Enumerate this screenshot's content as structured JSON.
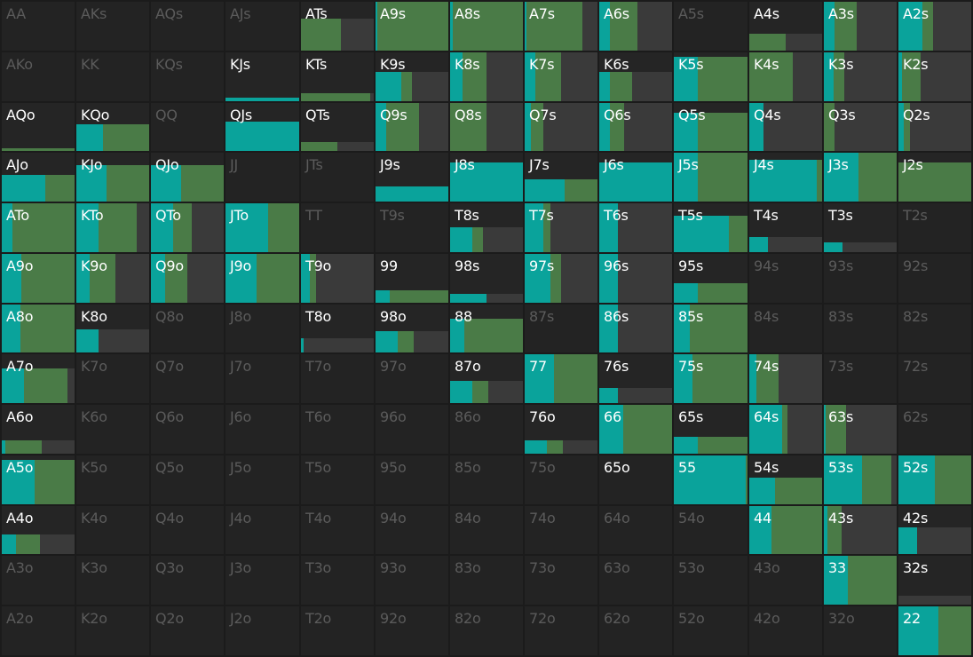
{
  "colors": {
    "background": "#1b1b1b",
    "cell": "#252525",
    "teal": "#0aa39b",
    "green": "#4a7b47",
    "fold": "#3a3a3a",
    "label_active": "#ffffff",
    "label_inactive": "#5b5b5b"
  },
  "rows": [
    [
      {
        "hand": "AA",
        "active": false
      },
      {
        "hand": "AKs",
        "active": false
      },
      {
        "hand": "AQs",
        "active": false
      },
      {
        "hand": "AJs",
        "active": false
      },
      {
        "hand": "ATs",
        "active": true,
        "freq": 0.65,
        "teal": 0.0,
        "green": 0.55
      },
      {
        "hand": "A9s",
        "active": true,
        "freq": 1.0,
        "teal": 0.02,
        "green": 0.98
      },
      {
        "hand": "A8s",
        "active": true,
        "freq": 1.0,
        "teal": 0.04,
        "green": 0.96
      },
      {
        "hand": "A7s",
        "active": true,
        "freq": 1.0,
        "teal": 0.02,
        "green": 0.77
      },
      {
        "hand": "A6s",
        "active": true,
        "freq": 1.0,
        "teal": 0.15,
        "green": 0.38
      },
      {
        "hand": "A5s",
        "active": false
      },
      {
        "hand": "A4s",
        "active": true,
        "freq": 0.35,
        "teal": 0.0,
        "green": 0.5
      },
      {
        "hand": "A3s",
        "active": true,
        "freq": 1.0,
        "teal": 0.15,
        "green": 0.3
      },
      {
        "hand": "A2s",
        "active": true,
        "freq": 1.0,
        "teal": 0.33,
        "green": 0.15
      }
    ],
    [
      {
        "hand": "AKo",
        "active": false
      },
      {
        "hand": "KK",
        "active": false
      },
      {
        "hand": "KQs",
        "active": false
      },
      {
        "hand": "KJs",
        "active": true,
        "freq": 0.07,
        "teal": 1.0,
        "green": 0.0
      },
      {
        "hand": "KTs",
        "active": true,
        "freq": 0.16,
        "teal": 0.0,
        "green": 0.95
      },
      {
        "hand": "K9s",
        "active": true,
        "freq": 0.6,
        "teal": 0.35,
        "green": 0.15
      },
      {
        "hand": "K8s",
        "active": true,
        "freq": 1.0,
        "teal": 0.17,
        "green": 0.33
      },
      {
        "hand": "K7s",
        "active": true,
        "freq": 1.0,
        "teal": 0.15,
        "green": 0.35
      },
      {
        "hand": "K6s",
        "active": true,
        "freq": 0.6,
        "teal": 0.15,
        "green": 0.3
      },
      {
        "hand": "K5s",
        "active": true,
        "freq": 0.9,
        "teal": 0.33,
        "green": 0.67
      },
      {
        "hand": "K4s",
        "active": true,
        "freq": 1.0,
        "teal": 0.0,
        "green": 0.6
      },
      {
        "hand": "K3s",
        "active": true,
        "freq": 1.0,
        "teal": 0.13,
        "green": 0.15
      },
      {
        "hand": "K2s",
        "active": true,
        "freq": 1.0,
        "teal": 0.05,
        "green": 0.25
      }
    ],
    [
      {
        "hand": "AQo",
        "active": true,
        "freq": 0.04,
        "teal": 0.0,
        "green": 1.0
      },
      {
        "hand": "KQo",
        "active": true,
        "freq": 0.55,
        "teal": 0.36,
        "green": 0.64
      },
      {
        "hand": "QQ",
        "active": false
      },
      {
        "hand": "QJs",
        "active": true,
        "freq": 0.62,
        "teal": 1.0,
        "green": 0.0
      },
      {
        "hand": "QTs",
        "active": true,
        "freq": 0.18,
        "teal": 0.0,
        "green": 0.5
      },
      {
        "hand": "Q9s",
        "active": true,
        "freq": 1.0,
        "teal": 0.15,
        "green": 0.45
      },
      {
        "hand": "Q8s",
        "active": true,
        "freq": 1.0,
        "teal": 0.0,
        "green": 0.5
      },
      {
        "hand": "Q7s",
        "active": true,
        "freq": 1.0,
        "teal": 0.08,
        "green": 0.17
      },
      {
        "hand": "Q6s",
        "active": true,
        "freq": 1.0,
        "teal": 0.15,
        "green": 0.2
      },
      {
        "hand": "Q5s",
        "active": true,
        "freq": 0.8,
        "teal": 0.33,
        "green": 0.67
      },
      {
        "hand": "Q4s",
        "active": true,
        "freq": 1.0,
        "teal": 0.2,
        "green": 0.0
      },
      {
        "hand": "Q3s",
        "active": true,
        "freq": 1.0,
        "teal": 0.0,
        "green": 0.15
      },
      {
        "hand": "Q2s",
        "active": true,
        "freq": 1.0,
        "teal": 0.07,
        "green": 0.08
      }
    ],
    [
      {
        "hand": "AJo",
        "active": true,
        "freq": 0.55,
        "teal": 0.6,
        "green": 0.4
      },
      {
        "hand": "KJo",
        "active": true,
        "freq": 0.75,
        "teal": 0.42,
        "green": 0.58
      },
      {
        "hand": "QJo",
        "active": true,
        "freq": 0.75,
        "teal": 0.42,
        "green": 0.58
      },
      {
        "hand": "JJ",
        "active": false
      },
      {
        "hand": "JTs",
        "active": false
      },
      {
        "hand": "J9s",
        "active": true,
        "freq": 0.3,
        "teal": 1.0,
        "green": 0.0
      },
      {
        "hand": "J8s",
        "active": true,
        "freq": 0.8,
        "teal": 1.0,
        "green": 0.0
      },
      {
        "hand": "J7s",
        "active": true,
        "freq": 0.45,
        "teal": 0.55,
        "green": 0.45
      },
      {
        "hand": "J6s",
        "active": true,
        "freq": 0.8,
        "teal": 1.0,
        "green": 0.0
      },
      {
        "hand": "J5s",
        "active": true,
        "freq": 1.0,
        "teal": 0.33,
        "green": 0.67
      },
      {
        "hand": "J4s",
        "active": true,
        "freq": 0.85,
        "teal": 0.93,
        "green": 0.07
      },
      {
        "hand": "J3s",
        "active": true,
        "freq": 1.0,
        "teal": 0.47,
        "green": 0.53
      },
      {
        "hand": "J2s",
        "active": true,
        "freq": 0.8,
        "teal": 0.0,
        "green": 1.0
      }
    ],
    [
      {
        "hand": "ATo",
        "active": true,
        "freq": 1.0,
        "teal": 0.15,
        "green": 0.85
      },
      {
        "hand": "KTo",
        "active": true,
        "freq": 1.0,
        "teal": 0.3,
        "green": 0.52
      },
      {
        "hand": "QTo",
        "active": true,
        "freq": 1.0,
        "teal": 0.3,
        "green": 0.25
      },
      {
        "hand": "JTo",
        "active": true,
        "freq": 1.0,
        "teal": 0.58,
        "green": 0.42
      },
      {
        "hand": "TT",
        "active": false
      },
      {
        "hand": "T9s",
        "active": false
      },
      {
        "hand": "T8s",
        "active": true,
        "freq": 0.5,
        "teal": 0.3,
        "green": 0.15
      },
      {
        "hand": "T7s",
        "active": true,
        "freq": 1.0,
        "teal": 0.25,
        "green": 0.1
      },
      {
        "hand": "T6s",
        "active": true,
        "freq": 1.0,
        "teal": 0.25,
        "green": 0.0
      },
      {
        "hand": "T5s",
        "active": true,
        "freq": 0.75,
        "teal": 0.75,
        "green": 0.25
      },
      {
        "hand": "T4s",
        "active": true,
        "freq": 0.3,
        "teal": 0.25,
        "green": 0.0
      },
      {
        "hand": "T3s",
        "active": true,
        "freq": 0.2,
        "teal": 0.25,
        "green": 0.0
      },
      {
        "hand": "T2s",
        "active": false
      }
    ],
    [
      {
        "hand": "A9o",
        "active": true,
        "freq": 1.0,
        "teal": 0.27,
        "green": 0.73
      },
      {
        "hand": "K9o",
        "active": true,
        "freq": 1.0,
        "teal": 0.18,
        "green": 0.35
      },
      {
        "hand": "Q9o",
        "active": true,
        "freq": 1.0,
        "teal": 0.2,
        "green": 0.3
      },
      {
        "hand": "J9o",
        "active": true,
        "freq": 1.0,
        "teal": 0.42,
        "green": 0.58
      },
      {
        "hand": "T9o",
        "active": true,
        "freq": 1.0,
        "teal": 0.12,
        "green": 0.08
      },
      {
        "hand": "99",
        "active": true,
        "freq": 0.25,
        "teal": 0.2,
        "green": 0.8
      },
      {
        "hand": "98s",
        "active": true,
        "freq": 0.18,
        "teal": 0.5,
        "green": 0.0
      },
      {
        "hand": "97s",
        "active": true,
        "freq": 1.0,
        "teal": 0.35,
        "green": 0.15
      },
      {
        "hand": "96s",
        "active": true,
        "freq": 1.0,
        "teal": 0.25,
        "green": 0.0
      },
      {
        "hand": "95s",
        "active": true,
        "freq": 0.4,
        "teal": 0.33,
        "green": 0.67
      },
      {
        "hand": "94s",
        "active": false
      },
      {
        "hand": "93s",
        "active": false
      },
      {
        "hand": "92s",
        "active": false
      }
    ],
    [
      {
        "hand": "A8o",
        "active": true,
        "freq": 1.0,
        "teal": 0.25,
        "green": 0.75
      },
      {
        "hand": "K8o",
        "active": true,
        "freq": 0.48,
        "teal": 0.3,
        "green": 0.0
      },
      {
        "hand": "Q8o",
        "active": false
      },
      {
        "hand": "J8o",
        "active": false
      },
      {
        "hand": "T8o",
        "active": true,
        "freq": 0.3,
        "teal": 0.04,
        "green": 0.0
      },
      {
        "hand": "98o",
        "active": true,
        "freq": 0.45,
        "teal": 0.3,
        "green": 0.22
      },
      {
        "hand": "88",
        "active": true,
        "freq": 0.7,
        "teal": 0.2,
        "green": 0.8
      },
      {
        "hand": "87s",
        "active": false
      },
      {
        "hand": "86s",
        "active": true,
        "freq": 1.0,
        "teal": 0.25,
        "green": 0.0
      },
      {
        "hand": "85s",
        "active": true,
        "freq": 1.0,
        "teal": 0.22,
        "green": 0.78
      },
      {
        "hand": "84s",
        "active": false
      },
      {
        "hand": "83s",
        "active": false
      },
      {
        "hand": "82s",
        "active": false
      }
    ],
    [
      {
        "hand": "A7o",
        "active": true,
        "freq": 0.7,
        "teal": 0.3,
        "green": 0.6
      },
      {
        "hand": "K7o",
        "active": false
      },
      {
        "hand": "Q7o",
        "active": false
      },
      {
        "hand": "J7o",
        "active": false
      },
      {
        "hand": "T7o",
        "active": false
      },
      {
        "hand": "97o",
        "active": false
      },
      {
        "hand": "87o",
        "active": true,
        "freq": 0.45,
        "teal": 0.3,
        "green": 0.22
      },
      {
        "hand": "77",
        "active": true,
        "freq": 1.0,
        "teal": 0.4,
        "green": 0.6
      },
      {
        "hand": "76s",
        "active": true,
        "freq": 0.3,
        "teal": 0.25,
        "green": 0.0
      },
      {
        "hand": "75s",
        "active": true,
        "freq": 1.0,
        "teal": 0.25,
        "green": 0.75
      },
      {
        "hand": "74s",
        "active": true,
        "freq": 1.0,
        "teal": 0.1,
        "green": 0.3
      },
      {
        "hand": "73s",
        "active": false
      },
      {
        "hand": "72s",
        "active": false
      }
    ],
    [
      {
        "hand": "A6o",
        "active": true,
        "freq": 0.28,
        "teal": 0.05,
        "green": 0.5
      },
      {
        "hand": "K6o",
        "active": false
      },
      {
        "hand": "Q6o",
        "active": false
      },
      {
        "hand": "J6o",
        "active": false
      },
      {
        "hand": "T6o",
        "active": false
      },
      {
        "hand": "96o",
        "active": false
      },
      {
        "hand": "86o",
        "active": false
      },
      {
        "hand": "76o",
        "active": true,
        "freq": 0.28,
        "teal": 0.3,
        "green": 0.22
      },
      {
        "hand": "66",
        "active": true,
        "freq": 1.0,
        "teal": 0.33,
        "green": 0.67
      },
      {
        "hand": "65s",
        "active": true,
        "freq": 0.35,
        "teal": 0.33,
        "green": 0.67
      },
      {
        "hand": "64s",
        "active": true,
        "freq": 1.0,
        "teal": 0.45,
        "green": 0.07
      },
      {
        "hand": "63s",
        "active": true,
        "freq": 1.0,
        "teal": 0.02,
        "green": 0.28
      },
      {
        "hand": "62s",
        "active": false
      }
    ],
    [
      {
        "hand": "A5o",
        "active": true,
        "freq": 0.9,
        "teal": 0.45,
        "green": 0.55
      },
      {
        "hand": "K5o",
        "active": false
      },
      {
        "hand": "Q5o",
        "active": false
      },
      {
        "hand": "J5o",
        "active": false
      },
      {
        "hand": "T5o",
        "active": false
      },
      {
        "hand": "95o",
        "active": false
      },
      {
        "hand": "85o",
        "active": false
      },
      {
        "hand": "75o",
        "active": false
      },
      {
        "hand": "65o",
        "active": false,
        "label_active": true
      },
      {
        "hand": "55",
        "active": true,
        "freq": 1.0,
        "teal": 0.97,
        "green": 0.03
      },
      {
        "hand": "54s",
        "active": true,
        "freq": 0.55,
        "teal": 0.35,
        "green": 0.65
      },
      {
        "hand": "53s",
        "active": true,
        "freq": 1.0,
        "teal": 0.52,
        "green": 0.4
      },
      {
        "hand": "52s",
        "active": true,
        "freq": 1.0,
        "teal": 0.5,
        "green": 0.5
      }
    ],
    [
      {
        "hand": "A4o",
        "active": true,
        "freq": 0.4,
        "teal": 0.2,
        "green": 0.33
      },
      {
        "hand": "K4o",
        "active": false
      },
      {
        "hand": "Q4o",
        "active": false
      },
      {
        "hand": "J4o",
        "active": false
      },
      {
        "hand": "T4o",
        "active": false
      },
      {
        "hand": "94o",
        "active": false
      },
      {
        "hand": "84o",
        "active": false
      },
      {
        "hand": "74o",
        "active": false
      },
      {
        "hand": "64o",
        "active": false
      },
      {
        "hand": "54o",
        "active": false
      },
      {
        "hand": "44",
        "active": true,
        "freq": 1.0,
        "teal": 0.3,
        "green": 0.7
      },
      {
        "hand": "43s",
        "active": true,
        "freq": 1.0,
        "teal": 0.05,
        "green": 0.2
      },
      {
        "hand": "42s",
        "active": true,
        "freq": 0.55,
        "teal": 0.25,
        "green": 0.0
      }
    ],
    [
      {
        "hand": "A3o",
        "active": false
      },
      {
        "hand": "K3o",
        "active": false
      },
      {
        "hand": "Q3o",
        "active": false
      },
      {
        "hand": "J3o",
        "active": false
      },
      {
        "hand": "T3o",
        "active": false
      },
      {
        "hand": "93o",
        "active": false
      },
      {
        "hand": "83o",
        "active": false
      },
      {
        "hand": "73o",
        "active": false
      },
      {
        "hand": "63o",
        "active": false
      },
      {
        "hand": "53o",
        "active": false
      },
      {
        "hand": "43o",
        "active": false
      },
      {
        "hand": "33",
        "active": true,
        "freq": 1.0,
        "teal": 0.33,
        "green": 0.67
      },
      {
        "hand": "32s",
        "active": true,
        "freq": 0.18,
        "teal": 0.0,
        "green": 0.0
      }
    ],
    [
      {
        "hand": "A2o",
        "active": false
      },
      {
        "hand": "K2o",
        "active": false
      },
      {
        "hand": "Q2o",
        "active": false
      },
      {
        "hand": "J2o",
        "active": false
      },
      {
        "hand": "T2o",
        "active": false
      },
      {
        "hand": "92o",
        "active": false
      },
      {
        "hand": "82o",
        "active": false
      },
      {
        "hand": "72o",
        "active": false
      },
      {
        "hand": "62o",
        "active": false
      },
      {
        "hand": "52o",
        "active": false
      },
      {
        "hand": "42o",
        "active": false
      },
      {
        "hand": "32o",
        "active": false
      },
      {
        "hand": "22",
        "active": true,
        "freq": 1.0,
        "teal": 0.55,
        "green": 0.45
      }
    ]
  ]
}
